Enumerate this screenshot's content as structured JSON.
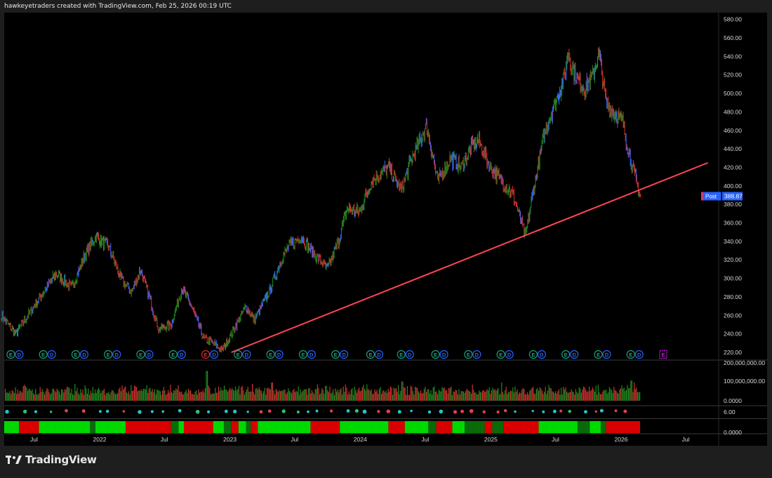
{
  "header": {
    "title": "hawkeyetraders created with TradingView.com, Feb 25, 2026 00:19 UTC"
  },
  "brand": {
    "name": "TradingView",
    "logo_icon": "tradingview-logo-icon"
  },
  "price_tag": {
    "session_label": "Post",
    "price": "388.87",
    "color": "#2962ff",
    "session_color": "#ff2d55"
  },
  "colors": {
    "background": "#000000",
    "frame": "#1e1e1e",
    "up": "#1f8a1f",
    "down": "#d32f2f",
    "neutral": "#3d6bff",
    "trendline": "#ff4458",
    "earnings_event": "#1e9e7e",
    "dividend_event": "#2962ff",
    "earnings_negative": "#d32f2f",
    "upcoming_earnings": "#c51fdd",
    "strip_green": "#00e000",
    "strip_dark_green": "#0a6e0a",
    "strip_red": "#e00000",
    "dot_cyan": "#26c6c6",
    "dot_red": "#e0424f"
  },
  "chart_data": {
    "type": "ohlc",
    "symbol_price_range": [
      210,
      580
    ],
    "x_axis": {
      "start": "2021-04",
      "end": "2026-09",
      "tick_labels": [
        {
          "label": "Jul",
          "date": "2021-07-01"
        },
        {
          "label": "2022",
          "date": "2022-01-01"
        },
        {
          "label": "Jul",
          "date": "2022-07-01"
        },
        {
          "label": "2023",
          "date": "2023-01-01"
        },
        {
          "label": "Jul",
          "date": "2023-07-01"
        },
        {
          "label": "2024",
          "date": "2024-01-01"
        },
        {
          "label": "Jul",
          "date": "2024-07-01"
        },
        {
          "label": "2025",
          "date": "2025-01-01"
        },
        {
          "label": "Jul",
          "date": "2025-07-01"
        },
        {
          "label": "2026",
          "date": "2026-01-01"
        },
        {
          "label": "Jul",
          "date": "2026-07-01"
        }
      ]
    },
    "price_axis": {
      "ylim": [
        210,
        585
      ],
      "tick_labels": [
        "580.00",
        "560.00",
        "540.00",
        "520.00",
        "500.00",
        "480.00",
        "460.00",
        "440.00",
        "420.00",
        "400.00",
        "380.00",
        "360.00",
        "340.00",
        "320.00",
        "300.00",
        "280.00",
        "260.00",
        "240.00",
        "220.00"
      ]
    },
    "price_path": [
      {
        "date": "2021-04-01",
        "price": 260
      },
      {
        "date": "2021-05-10",
        "price": 240
      },
      {
        "date": "2021-07-01",
        "price": 270
      },
      {
        "date": "2021-09-01",
        "price": 305
      },
      {
        "date": "2021-10-15",
        "price": 290
      },
      {
        "date": "2021-11-20",
        "price": 325
      },
      {
        "date": "2021-12-20",
        "price": 345
      },
      {
        "date": "2022-01-25",
        "price": 335
      },
      {
        "date": "2022-03-01",
        "price": 300
      },
      {
        "date": "2022-04-01",
        "price": 285
      },
      {
        "date": "2022-04-25",
        "price": 310
      },
      {
        "date": "2022-05-20",
        "price": 280
      },
      {
        "date": "2022-06-15",
        "price": 245
      },
      {
        "date": "2022-07-20",
        "price": 250
      },
      {
        "date": "2022-08-20",
        "price": 290
      },
      {
        "date": "2022-09-20",
        "price": 265
      },
      {
        "date": "2022-10-20",
        "price": 235
      },
      {
        "date": "2022-11-15",
        "price": 230
      },
      {
        "date": "2022-12-10",
        "price": 222
      },
      {
        "date": "2023-01-05",
        "price": 240
      },
      {
        "date": "2023-02-15",
        "price": 270
      },
      {
        "date": "2023-03-10",
        "price": 255
      },
      {
        "date": "2023-04-20",
        "price": 285
      },
      {
        "date": "2023-05-25",
        "price": 320
      },
      {
        "date": "2023-06-15",
        "price": 335
      },
      {
        "date": "2023-07-20",
        "price": 345
      },
      {
        "date": "2023-08-15",
        "price": 330
      },
      {
        "date": "2023-09-10",
        "price": 320
      },
      {
        "date": "2023-10-01",
        "price": 310
      },
      {
        "date": "2023-11-01",
        "price": 340
      },
      {
        "date": "2023-11-25",
        "price": 375
      },
      {
        "date": "2023-12-31",
        "price": 372
      },
      {
        "date": "2024-02-01",
        "price": 405
      },
      {
        "date": "2024-03-20",
        "price": 420
      },
      {
        "date": "2024-04-25",
        "price": 395
      },
      {
        "date": "2024-05-20",
        "price": 425
      },
      {
        "date": "2024-07-05",
        "price": 465
      },
      {
        "date": "2024-08-05",
        "price": 405
      },
      {
        "date": "2024-09-10",
        "price": 430
      },
      {
        "date": "2024-10-10",
        "price": 420
      },
      {
        "date": "2024-11-05",
        "price": 440
      },
      {
        "date": "2024-11-25",
        "price": 450
      },
      {
        "date": "2024-12-31",
        "price": 420
      },
      {
        "date": "2025-02-01",
        "price": 405
      },
      {
        "date": "2025-03-05",
        "price": 390
      },
      {
        "date": "2025-04-08",
        "price": 345
      },
      {
        "date": "2025-04-30",
        "price": 395
      },
      {
        "date": "2025-05-30",
        "price": 455
      },
      {
        "date": "2025-06-25",
        "price": 485
      },
      {
        "date": "2025-07-25",
        "price": 515
      },
      {
        "date": "2025-08-05",
        "price": 545
      },
      {
        "date": "2025-08-25",
        "price": 520
      },
      {
        "date": "2025-09-20",
        "price": 505
      },
      {
        "date": "2025-10-15",
        "price": 520
      },
      {
        "date": "2025-10-30",
        "price": 545
      },
      {
        "date": "2025-11-20",
        "price": 490
      },
      {
        "date": "2025-12-10",
        "price": 480
      },
      {
        "date": "2026-01-05",
        "price": 470
      },
      {
        "date": "2026-01-20",
        "price": 440
      },
      {
        "date": "2026-02-05",
        "price": 415
      },
      {
        "date": "2026-02-24",
        "price": 388.87
      }
    ],
    "trendline": {
      "start": {
        "date": "2023-01-05",
        "price": 220
      },
      "end": {
        "date": "2026-09-01",
        "price": 425
      }
    },
    "events": {
      "earnings_dates": [
        "2021-04-27",
        "2021-07-27",
        "2021-10-26",
        "2022-01-25",
        "2022-04-26",
        "2022-07-26",
        "2022-10-25",
        "2023-01-24",
        "2023-04-25",
        "2023-07-25",
        "2023-10-24",
        "2024-01-30",
        "2024-04-25",
        "2024-07-30",
        "2024-10-30",
        "2025-01-29",
        "2025-04-30",
        "2025-07-30",
        "2025-10-29",
        "2026-01-28"
      ],
      "negative_earnings": [
        "2022-10-25"
      ],
      "upcoming_earnings": "2026-04-29",
      "dividend_offset_days": 15
    },
    "volume": {
      "axis_labels": [
        "200,000,000.00",
        "100,000,000.00",
        "0.0000"
      ],
      "ylim": [
        0,
        200000000
      ],
      "typical_range": [
        30000000,
        90000000
      ],
      "spikes": [
        {
          "date": "2022-10-27",
          "value": 155000000
        },
        {
          "date": "2023-04-27",
          "value": 95000000
        },
        {
          "date": "2024-04-26",
          "value": 100000000
        },
        {
          "date": "2025-01-30",
          "value": 95000000
        },
        {
          "date": "2026-01-29",
          "value": 105000000
        },
        {
          "date": "2026-02-06",
          "value": 95000000
        }
      ]
    },
    "dot_indicator": {
      "axis_label": "6.00"
    },
    "signal_strip": {
      "axis_label": "0.0000",
      "segments": [
        {
          "start": "2021-04-01",
          "end": "2021-05-20",
          "state": "green"
        },
        {
          "start": "2021-05-20",
          "end": "2021-07-15",
          "state": "red"
        },
        {
          "start": "2021-07-15",
          "end": "2021-12-05",
          "state": "green"
        },
        {
          "start": "2021-12-05",
          "end": "2021-12-20",
          "state": "dark_green"
        },
        {
          "start": "2021-12-20",
          "end": "2022-03-15",
          "state": "green"
        },
        {
          "start": "2022-03-15",
          "end": "2022-07-20",
          "state": "red"
        },
        {
          "start": "2022-07-20",
          "end": "2022-08-10",
          "state": "dark_green"
        },
        {
          "start": "2022-08-10",
          "end": "2022-08-25",
          "state": "green"
        },
        {
          "start": "2022-08-25",
          "end": "2022-11-15",
          "state": "red"
        },
        {
          "start": "2022-11-15",
          "end": "2022-12-15",
          "state": "green"
        },
        {
          "start": "2022-12-15",
          "end": "2023-01-05",
          "state": "dark_green"
        },
        {
          "start": "2023-01-05",
          "end": "2023-01-25",
          "state": "red"
        },
        {
          "start": "2023-01-25",
          "end": "2023-02-15",
          "state": "green"
        },
        {
          "start": "2023-02-15",
          "end": "2023-03-01",
          "state": "dark_green"
        },
        {
          "start": "2023-03-01",
          "end": "2023-03-20",
          "state": "red"
        },
        {
          "start": "2023-03-20",
          "end": "2023-08-15",
          "state": "green"
        },
        {
          "start": "2023-08-15",
          "end": "2023-11-05",
          "state": "red"
        },
        {
          "start": "2023-11-05",
          "end": "2024-03-20",
          "state": "green"
        },
        {
          "start": "2024-03-20",
          "end": "2024-05-05",
          "state": "red"
        },
        {
          "start": "2024-05-05",
          "end": "2024-07-10",
          "state": "green"
        },
        {
          "start": "2024-07-10",
          "end": "2024-08-01",
          "state": "dark_green"
        },
        {
          "start": "2024-08-01",
          "end": "2024-09-15",
          "state": "red"
        },
        {
          "start": "2024-09-15",
          "end": "2024-10-20",
          "state": "green"
        },
        {
          "start": "2024-10-20",
          "end": "2024-12-15",
          "state": "dark_green"
        },
        {
          "start": "2024-12-15",
          "end": "2025-01-05",
          "state": "red"
        },
        {
          "start": "2025-01-05",
          "end": "2025-02-05",
          "state": "dark_green"
        },
        {
          "start": "2025-02-05",
          "end": "2025-05-15",
          "state": "red"
        },
        {
          "start": "2025-05-15",
          "end": "2025-09-01",
          "state": "green"
        },
        {
          "start": "2025-09-01",
          "end": "2025-10-05",
          "state": "dark_green"
        },
        {
          "start": "2025-10-05",
          "end": "2025-11-05",
          "state": "green"
        },
        {
          "start": "2025-11-05",
          "end": "2025-11-20",
          "state": "dark_green"
        },
        {
          "start": "2025-11-20",
          "end": "2026-02-24",
          "state": "red"
        }
      ]
    }
  }
}
